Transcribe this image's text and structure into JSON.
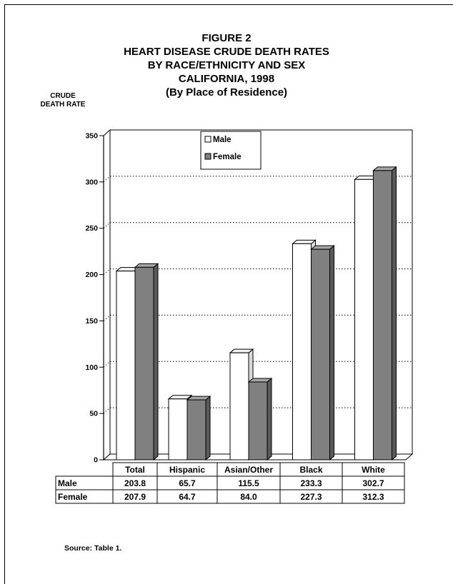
{
  "chart_data": {
    "type": "bar",
    "title": [
      "FIGURE 2",
      "HEART DISEASE CRUDE DEATH RATES",
      "BY RACE/ETHNICITY AND SEX",
      "CALIFORNIA, 1998",
      "(By Place of Residence)"
    ],
    "ylabel": [
      "CRUDE",
      "DEATH RATE"
    ],
    "categories": [
      "Total",
      "Hispanic",
      "Asian/Other",
      "Black",
      "White"
    ],
    "series": [
      {
        "name": "Male",
        "values": [
          203.8,
          65.7,
          115.5,
          233.3,
          302.7
        ],
        "display": [
          "203.8",
          "65.7",
          "115.5",
          "233.3",
          "302.7"
        ],
        "color": "#ffffff"
      },
      {
        "name": "Female",
        "values": [
          207.9,
          64.7,
          84.0,
          227.3,
          312.3
        ],
        "display": [
          "207.9",
          "64.7",
          "84.0",
          "227.3",
          "312.3"
        ],
        "color": "#808080"
      }
    ],
    "ylim": [
      0,
      350
    ],
    "yticks": [
      "0",
      "50",
      "100",
      "150",
      "200",
      "250",
      "300",
      "350"
    ],
    "grid": "dotted horizontal",
    "legend": "top-center"
  },
  "source": "Source:  Table 1."
}
